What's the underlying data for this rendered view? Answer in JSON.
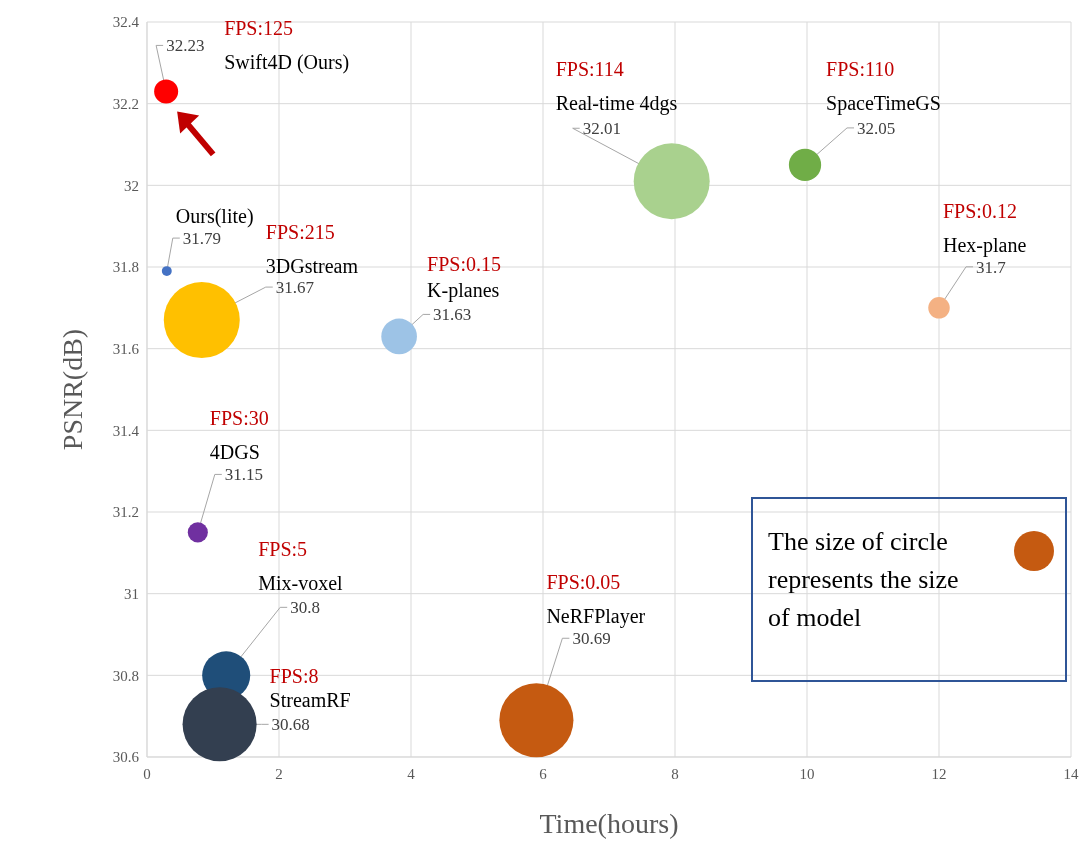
{
  "chart_data": {
    "type": "bubble",
    "xlabel": "Time(hours)",
    "ylabel": "PSNR(dB)",
    "xlim": [
      0,
      14
    ],
    "xticks": [
      0,
      2,
      4,
      6,
      8,
      10,
      12,
      14
    ],
    "ylim": [
      30.6,
      32.4
    ],
    "yticks": [
      30.6,
      30.8,
      31,
      31.2,
      31.4,
      31.6,
      31.8,
      32,
      32.2,
      32.4
    ],
    "grid": true,
    "data_labels": true,
    "series": [
      {
        "name": "Swift4D (Ours)",
        "color": "#ff0000",
        "x": [
          0.29
        ],
        "values": [
          32.23
        ],
        "sizes": [
          0.1
        ]
      },
      {
        "name": "Ours(lite)",
        "color": "#4472c4",
        "x": [
          0.3
        ],
        "values": [
          31.79
        ],
        "sizes": [
          0.017
        ]
      },
      {
        "name": "3DGstream",
        "color": "#ffc000",
        "x": [
          0.83
        ],
        "values": [
          31.67
        ],
        "sizes": [
          1
        ]
      },
      {
        "name": "K-planes",
        "color": "#9dc3e6",
        "x": [
          3.82
        ],
        "values": [
          31.63
        ],
        "sizes": [
          0.22
        ]
      },
      {
        "name": "Real-time 4dgs",
        "color": "#a9d18e",
        "x": [
          7.95
        ],
        "values": [
          32.01
        ],
        "sizes": [
          1
        ]
      },
      {
        "name": "SpaceTimeGS",
        "color": "#70ad47",
        "x": [
          9.97
        ],
        "values": [
          32.05
        ],
        "sizes": [
          0.18
        ]
      },
      {
        "name": "Hex-plane",
        "color": "#f4b183",
        "x": [
          12
        ],
        "values": [
          31.7
        ],
        "sizes": [
          0.08
        ]
      },
      {
        "name": "4DGS",
        "color": "#7030a0",
        "x": [
          0.77
        ],
        "values": [
          31.15
        ],
        "sizes": [
          0.07
        ]
      },
      {
        "name": "Mix-voxel",
        "color": "#1f4e79",
        "x": [
          1.2
        ],
        "values": [
          30.8
        ],
        "sizes": [
          0.4
        ]
      },
      {
        "name": "StreamRF",
        "color": "#333f50",
        "x": [
          1.1
        ],
        "values": [
          30.68
        ],
        "sizes": [
          0.95
        ]
      },
      {
        "name": "NeRFPlayer",
        "color": "#c55a11",
        "x": [
          5.9
        ],
        "values": [
          30.69
        ],
        "sizes": [
          0.95
        ]
      }
    ],
    "annotations": [
      "FPS:125",
      "FPS:215",
      "FPS:0.15",
      "FPS:114",
      "FPS:110",
      "FPS:0.12",
      "FPS:30",
      "FPS:5",
      "FPS:8",
      "FPS:0.05",
      "The size of circle represents the size of model"
    ]
  }
}
